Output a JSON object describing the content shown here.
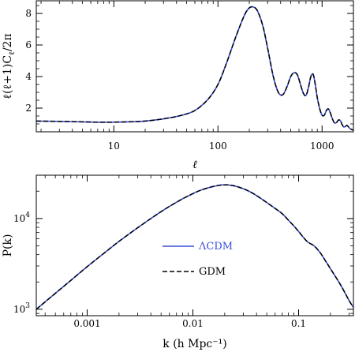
{
  "chart_data": [
    {
      "type": "line",
      "xlabel": "ℓ",
      "ylabel": "ℓ(ℓ+1)C_ℓ/2π",
      "xscale": "log",
      "yscale": "linear",
      "xlim": [
        1.8,
        2000
      ],
      "ylim": [
        0.5,
        8.8
      ],
      "x_ticks": [
        {
          "value": 10,
          "label": "10"
        },
        {
          "value": 100,
          "label": "100"
        },
        {
          "value": 1000,
          "label": "1000"
        }
      ],
      "y_ticks": [
        {
          "value": 2,
          "label": "2"
        },
        {
          "value": 4,
          "label": "4"
        },
        {
          "value": 6,
          "label": "6"
        },
        {
          "value": 8,
          "label": "8"
        }
      ],
      "grid": false,
      "series_colors": {
        "ΛCDM": "#3a4fd8",
        "GDM": "#000000"
      },
      "x": [
        1.8,
        3,
        5,
        7,
        10,
        15,
        20,
        30,
        45,
        60,
        80,
        100,
        120,
        150,
        180,
        200,
        220,
        240,
        270,
        300,
        340,
        380,
        420,
        460,
        500,
        540,
        580,
        620,
        660,
        700,
        740,
        780,
        820,
        860,
        900,
        950,
        1000,
        1050,
        1100,
        1150,
        1200,
        1260,
        1320,
        1380,
        1440,
        1500,
        1560,
        1620,
        1680,
        1740,
        1800,
        1860,
        1920,
        2000
      ],
      "series": [
        {
          "name": "ΛCDM",
          "values": [
            1.18,
            1.16,
            1.13,
            1.11,
            1.11,
            1.14,
            1.18,
            1.32,
            1.55,
            1.85,
            2.55,
            3.5,
            4.8,
            6.6,
            7.9,
            8.35,
            8.4,
            8.15,
            7.2,
            5.8,
            4.0,
            3.0,
            2.85,
            3.35,
            4.0,
            4.25,
            4.1,
            3.5,
            2.95,
            2.8,
            3.3,
            4.0,
            4.15,
            3.5,
            2.65,
            1.95,
            1.55,
            1.55,
            1.85,
            1.95,
            1.7,
            1.3,
            1.05,
            1.1,
            1.25,
            1.2,
            0.95,
            0.8,
            0.85,
            0.9,
            0.8,
            0.7,
            0.65,
            0.6
          ]
        },
        {
          "name": "GDM",
          "values": [
            1.18,
            1.16,
            1.13,
            1.11,
            1.11,
            1.14,
            1.18,
            1.32,
            1.55,
            1.85,
            2.55,
            3.5,
            4.8,
            6.6,
            7.9,
            8.35,
            8.4,
            8.15,
            7.2,
            5.8,
            4.0,
            3.0,
            2.85,
            3.35,
            4.0,
            4.25,
            4.1,
            3.5,
            2.95,
            2.8,
            3.3,
            4.0,
            4.15,
            3.5,
            2.65,
            1.95,
            1.55,
            1.55,
            1.85,
            1.95,
            1.7,
            1.3,
            1.05,
            1.1,
            1.25,
            1.2,
            0.95,
            0.8,
            0.85,
            0.9,
            0.8,
            0.7,
            0.65,
            0.6
          ]
        }
      ]
    },
    {
      "type": "line",
      "xlabel": "k (h Mpc⁻¹)",
      "ylabel": "P(k)",
      "xscale": "log",
      "yscale": "log",
      "xlim": [
        0.00033,
        0.33
      ],
      "ylim": [
        850,
        30000
      ],
      "x_ticks": [
        {
          "value": 0.001,
          "label": "0.001"
        },
        {
          "value": 0.01,
          "label": "0.01"
        },
        {
          "value": 0.1,
          "label": "0.1"
        }
      ],
      "y_ticks": [
        {
          "value": 1000,
          "label": "10",
          "exp": "3"
        },
        {
          "value": 10000,
          "label": "10",
          "exp": "4"
        }
      ],
      "grid": false,
      "legend": {
        "placement": "center-left",
        "entries": [
          {
            "name": "ΛCDM",
            "color": "#3a4fd8",
            "style": "solid"
          },
          {
            "name": "GDM",
            "color": "#000000",
            "style": "dashed"
          }
        ]
      },
      "x": [
        0.00033,
        0.0005,
        0.0007,
        0.001,
        0.0015,
        0.002,
        0.003,
        0.004,
        0.005,
        0.006,
        0.008,
        0.01,
        0.012,
        0.015,
        0.018,
        0.02,
        0.022,
        0.025,
        0.03,
        0.035,
        0.04,
        0.05,
        0.06,
        0.07,
        0.08,
        0.09,
        0.1,
        0.12,
        0.14,
        0.16,
        0.18,
        0.2,
        0.25,
        0.3,
        0.33
      ],
      "series": [
        {
          "name": "ΛCDM",
          "values": [
            1000,
            1500,
            2080,
            2950,
            4300,
            5600,
            7900,
            10000,
            11900,
            13600,
            16500,
            18800,
            20600,
            22300,
            23300,
            23500,
            23400,
            22800,
            21300,
            19600,
            17900,
            15000,
            12900,
            11300,
            9600,
            8300,
            7200,
            5600,
            5000,
            4200,
            3400,
            2800,
            1850,
            1250,
            1050
          ]
        },
        {
          "name": "GDM",
          "values": [
            1000,
            1500,
            2080,
            2950,
            4300,
            5600,
            7900,
            10000,
            11900,
            13600,
            16500,
            18800,
            20600,
            22300,
            23300,
            23500,
            23400,
            22800,
            21300,
            19600,
            17900,
            15000,
            12900,
            11300,
            9600,
            8300,
            7200,
            5600,
            5000,
            4200,
            3400,
            2800,
            1850,
            1250,
            1050
          ]
        }
      ]
    }
  ]
}
